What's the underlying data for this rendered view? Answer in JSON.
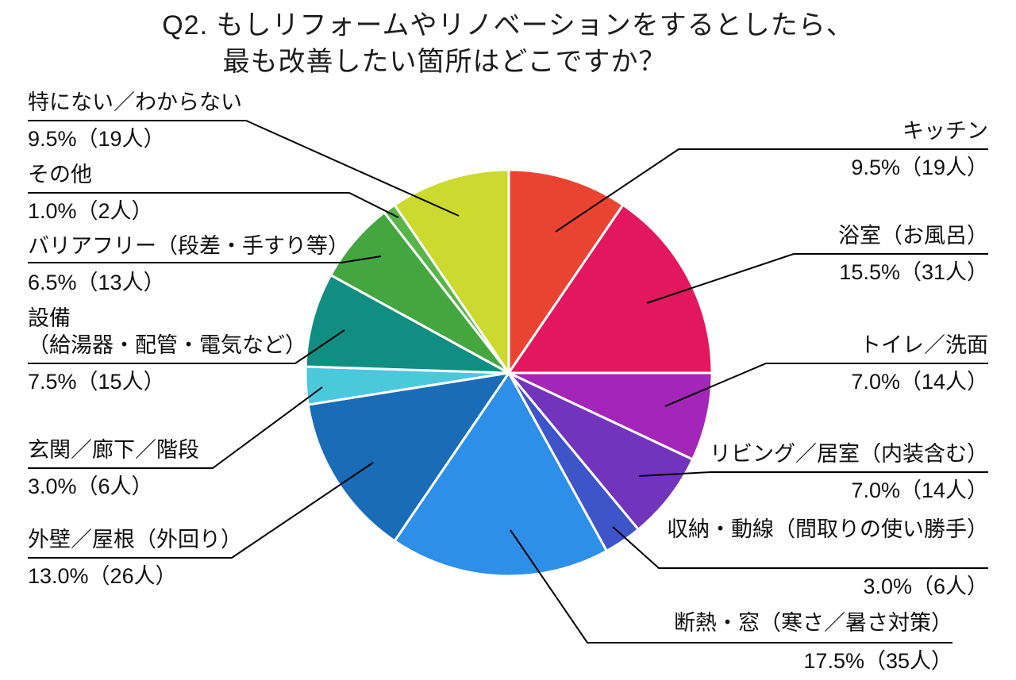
{
  "title": {
    "line1": "Q2. もしリフォームやリノベーションをするとしたら、",
    "line2": "最も改善したい箇所はどこですか？"
  },
  "chart_data": {
    "type": "pie",
    "title": "Q2. もしリフォームやリノベーションをするとしたら、最も改善したい箇所はどこですか？",
    "start_angle": "top",
    "direction": "clockwise",
    "legend": "callout-labels",
    "slices": [
      {
        "label": "キッチン",
        "percent": 9.5,
        "count": 19,
        "value_label": "9.5%（19人）",
        "color": "#e94431"
      },
      {
        "label": "浴室（お風呂）",
        "percent": 15.5,
        "count": 31,
        "value_label": "15.5%（31人）",
        "color": "#e3175e"
      },
      {
        "label": "トイレ／洗面",
        "percent": 7.0,
        "count": 14,
        "value_label": "7.0%（14人）",
        "color": "#a326b9"
      },
      {
        "label": "リビング／居室（内装含む）",
        "percent": 7.0,
        "count": 14,
        "value_label": "7.0%（14人）",
        "color": "#7334bd"
      },
      {
        "label": "収納・動線（間取りの使い勝手）",
        "percent": 3.0,
        "count": 6,
        "value_label": "3.0%（6人）",
        "color": "#3d55c9"
      },
      {
        "label": "断熱・窓（寒さ／暑さ対策）",
        "percent": 17.5,
        "count": 35,
        "value_label": "17.5%（35人）",
        "color": "#2e8fe8"
      },
      {
        "label": "外壁／屋根（外回り）",
        "percent": 13.0,
        "count": 26,
        "value_label": "13.0%（26人）",
        "color": "#1a6cb7"
      },
      {
        "label": "玄関／廊下／階段",
        "percent": 3.0,
        "count": 6,
        "value_label": "3.0%（6人）",
        "color": "#4bc9db"
      },
      {
        "label": "設備\n（給湯器・配管・電気など）",
        "percent": 7.5,
        "count": 15,
        "value_label": "7.5%（15人）",
        "color": "#108e81"
      },
      {
        "label": "バリアフリー（段差・手すり等）",
        "percent": 6.5,
        "count": 13,
        "value_label": "6.5%（13人）",
        "color": "#44a63f"
      },
      {
        "label": "その他",
        "percent": 1.0,
        "count": 2,
        "value_label": "1.0%（2人）",
        "color": "#58b54a"
      },
      {
        "label": "特にない／わからない",
        "percent": 9.5,
        "count": 19,
        "value_label": "9.5%（19人）",
        "color": "#ccd92f"
      }
    ]
  }
}
